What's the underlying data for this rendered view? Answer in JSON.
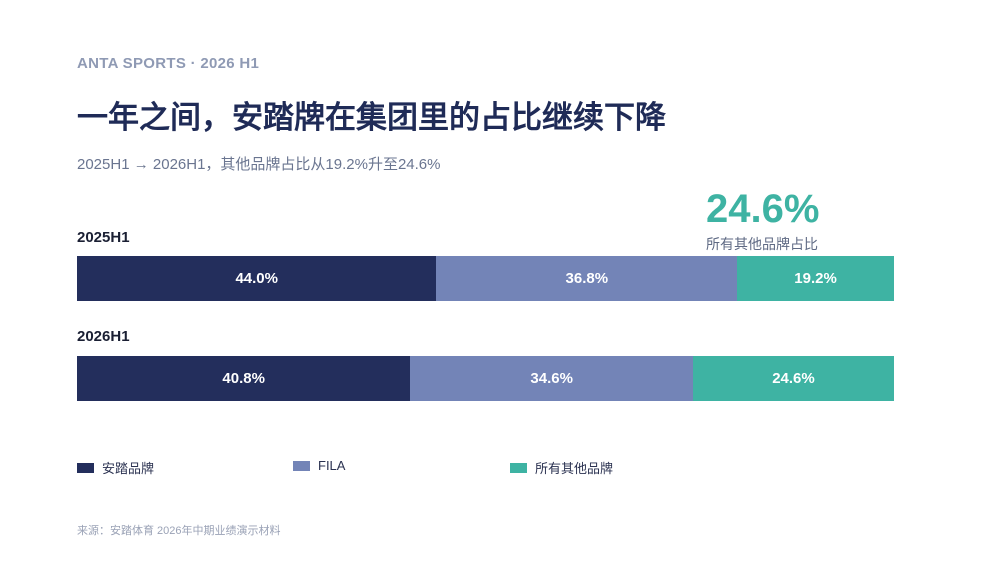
{
  "header": {
    "eyebrow": "ANTA SPORTS · 2026 H1",
    "title": "一年之间，安踏牌在集团里的占比继续下降",
    "subtitle": "2025H1 → 2026H1，其他品牌占比从19.2%升至24.6%"
  },
  "kpi": {
    "value": "24.6%",
    "label": "所有其他品牌占比"
  },
  "colors": {
    "anta": "#232e5c",
    "fila": "#7384b7",
    "others": "#3eb3a3"
  },
  "chart_data": {
    "type": "bar",
    "orientation": "horizontal",
    "stacked": "100%",
    "categories": [
      "2025H1",
      "2026H1"
    ],
    "series": [
      {
        "name": "安踏品牌",
        "values": [
          44.0,
          40.8
        ],
        "labels": [
          "44.0%",
          "40.8%"
        ]
      },
      {
        "name": "FILA",
        "values": [
          36.8,
          34.6
        ],
        "labels": [
          "36.8%",
          "34.6%"
        ]
      },
      {
        "name": "所有其他品牌",
        "values": [
          19.2,
          24.6
        ],
        "labels": [
          "19.2%",
          "24.6%"
        ]
      }
    ],
    "legend_position": "bottom"
  },
  "source": "来源：安踏体育 2026年中期业绩演示材料"
}
